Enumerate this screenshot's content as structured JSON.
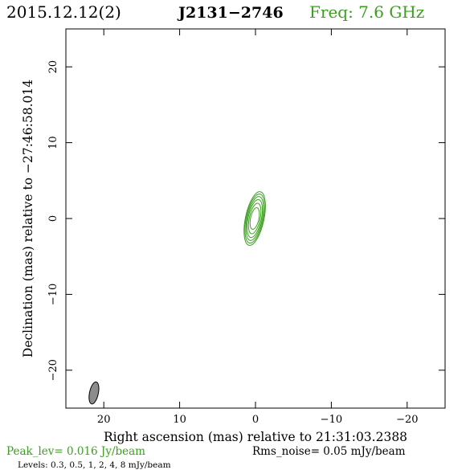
{
  "header": {
    "date": "2015.12.12(2)",
    "source": "J2131−2746",
    "freq": "Freq: 7.6 GHz"
  },
  "footer": {
    "peak": "Peak_lev=  0.016 Jy/beam",
    "rms": "Rms_noise= 0.05 mJy/beam",
    "levels": "Levels: 0.3, 0.5,   1,   2,   4,   8 mJy/beam"
  },
  "colors": {
    "green": "#3aa01e",
    "black": "#000000",
    "beam_fill": "#8c8c8c"
  },
  "chart_data": {
    "type": "contour",
    "xlabel": "Right ascension (mas) relative to 21:31:03.2388",
    "ylabel": "Declination (mas) relative to −27:46:58.014",
    "xlim": [
      25,
      -25
    ],
    "ylim": [
      -25,
      25
    ],
    "x_ticks": [
      20,
      10,
      0,
      -10,
      -20
    ],
    "x_tick_labels": [
      "20",
      "10",
      "0",
      "−10",
      "−20"
    ],
    "y_ticks": [
      20,
      10,
      0,
      -10,
      -20
    ],
    "y_tick_labels": [
      "20",
      "10",
      "0",
      "−10",
      "−20"
    ],
    "contour_levels_mJy": [
      0.3,
      0.5,
      1,
      2,
      4,
      8
    ],
    "contours": [
      {
        "level": 0.3,
        "cx": 0.1,
        "cy": 0,
        "rx": 1.22,
        "ry": 3.6,
        "pa": 12
      },
      {
        "level": 0.5,
        "cx": 0.1,
        "cy": 0,
        "rx": 1.12,
        "ry": 3.3,
        "pa": 12
      },
      {
        "level": 1,
        "cx": 0.1,
        "cy": 0,
        "rx": 1.0,
        "ry": 2.95,
        "pa": 12
      },
      {
        "level": 2,
        "cx": 0.1,
        "cy": 0,
        "rx": 0.88,
        "ry": 2.55,
        "pa": 12
      },
      {
        "level": 4,
        "cx": 0.1,
        "cy": 0,
        "rx": 0.72,
        "ry": 2.05,
        "pa": 12
      },
      {
        "level": 8,
        "cx": 0.1,
        "cy": 0,
        "rx": 0.55,
        "ry": 1.45,
        "pa": 12
      }
    ],
    "beam": {
      "cx": 21.3,
      "cy": -23.0,
      "rx": 0.58,
      "ry": 1.48,
      "pa": 12
    }
  }
}
